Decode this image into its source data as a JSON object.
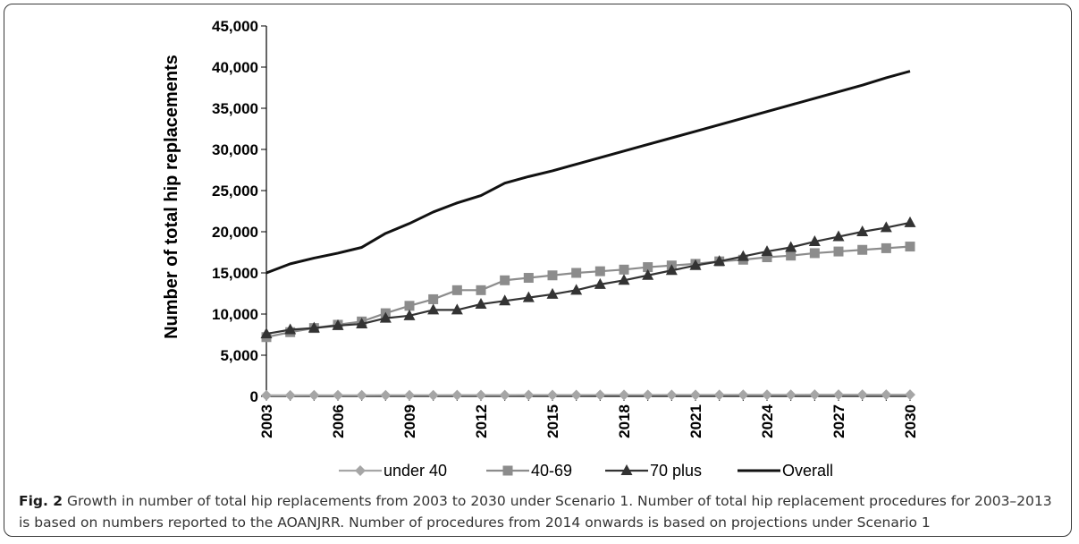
{
  "caption": {
    "fig_label": "Fig. 2",
    "text": "Growth in number of total hip replacements from 2003 to 2030 under Scenario 1. Number of total hip replacement procedures for 2003–2013 is based on numbers reported to the AOANJRR. Number of procedures from 2014 onwards is based on projections under Scenario 1"
  },
  "chart_data": {
    "type": "line",
    "title": "",
    "xlabel": "",
    "ylabel": "Number of total hip replacements",
    "x": [
      2003,
      2004,
      2005,
      2006,
      2007,
      2008,
      2009,
      2010,
      2011,
      2012,
      2013,
      2014,
      2015,
      2016,
      2017,
      2018,
      2019,
      2020,
      2021,
      2022,
      2023,
      2024,
      2025,
      2026,
      2027,
      2028,
      2029,
      2030
    ],
    "x_tick_labels": [
      "2003",
      "2006",
      "2009",
      "2012",
      "2015",
      "2018",
      "2021",
      "2024",
      "2027",
      "2030"
    ],
    "ylim": [
      0,
      45000
    ],
    "y_tick_labels": [
      "0",
      "5,000",
      "10,000",
      "15,000",
      "20,000",
      "25,000",
      "30,000",
      "35,000",
      "40,000",
      "45,000"
    ],
    "grid": false,
    "legend_position": "bottom",
    "series": [
      {
        "name": "under 40",
        "color": "#a6a6a6",
        "marker": "diamond",
        "values": [
          120,
          120,
          130,
          130,
          130,
          140,
          140,
          140,
          150,
          150,
          150,
          160,
          160,
          160,
          170,
          170,
          170,
          180,
          180,
          180,
          190,
          190,
          190,
          200,
          200,
          200,
          210,
          210
        ]
      },
      {
        "name": "40-69",
        "color": "#8c8c8c",
        "marker": "square",
        "values": [
          7200,
          7800,
          8300,
          8700,
          9100,
          10100,
          11000,
          11800,
          12900,
          12900,
          14100,
          14400,
          14700,
          15000,
          15200,
          15400,
          15700,
          15900,
          16100,
          16400,
          16600,
          16900,
          17100,
          17400,
          17600,
          17800,
          18000,
          18200
        ]
      },
      {
        "name": "70 plus",
        "color": "#333333",
        "marker": "triangle",
        "values": [
          7600,
          8100,
          8300,
          8600,
          8800,
          9500,
          9800,
          10500,
          10500,
          11200,
          11600,
          12000,
          12400,
          12900,
          13600,
          14100,
          14700,
          15300,
          15900,
          16400,
          17000,
          17600,
          18100,
          18800,
          19400,
          20000,
          20500,
          21100
        ]
      },
      {
        "name": "Overall",
        "color": "#111111",
        "marker": "none",
        "values": [
          15000,
          16100,
          16800,
          17400,
          18100,
          19800,
          21000,
          22400,
          23500,
          24400,
          25900,
          26700,
          27400,
          28200,
          29000,
          29800,
          30600,
          31400,
          32200,
          33000,
          33800,
          34600,
          35400,
          36200,
          37000,
          37800,
          38700,
          39500
        ]
      }
    ]
  }
}
